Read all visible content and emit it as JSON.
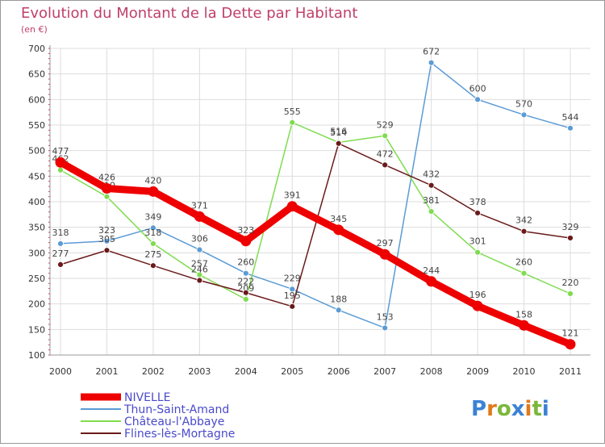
{
  "chart_data": {
    "type": "line",
    "title": "Evolution du Montant de la Dette par Habitant",
    "unit": "(en €)",
    "xlabel": "",
    "ylabel": "",
    "x": [
      "2000",
      "2001",
      "2002",
      "2003",
      "2004",
      "2005",
      "2006",
      "2007",
      "2008",
      "2009",
      "2010",
      "2011"
    ],
    "yticks": [
      100,
      150,
      200,
      250,
      300,
      350,
      400,
      450,
      500,
      550,
      600,
      650,
      700
    ],
    "ylim": [
      100,
      700
    ],
    "grid": true,
    "legend_position": "bottom-left",
    "series": [
      {
        "name": "NIVELLE",
        "color": "#ee0000",
        "emphasis": true,
        "values": [
          477,
          426,
          420,
          371,
          323,
          391,
          345,
          297,
          244,
          196,
          158,
          121
        ]
      },
      {
        "name": "Thun-Saint-Amand",
        "color": "#5b9bd5",
        "emphasis": false,
        "values": [
          318,
          323,
          349,
          306,
          260,
          229,
          188,
          153,
          672,
          600,
          570,
          544
        ]
      },
      {
        "name": "Château-l'Abbaye",
        "color": "#7fdc50",
        "emphasis": false,
        "values": [
          462,
          410,
          318,
          257,
          209,
          555,
          516,
          529,
          381,
          301,
          260,
          220
        ]
      },
      {
        "name": "Flines-lès-Mortagne",
        "color": "#6b1a1a",
        "emphasis": false,
        "values": [
          277,
          305,
          275,
          246,
          222,
          195,
          514,
          472,
          432,
          378,
          342,
          329
        ]
      }
    ]
  },
  "logo": {
    "text": "Proxiti"
  }
}
